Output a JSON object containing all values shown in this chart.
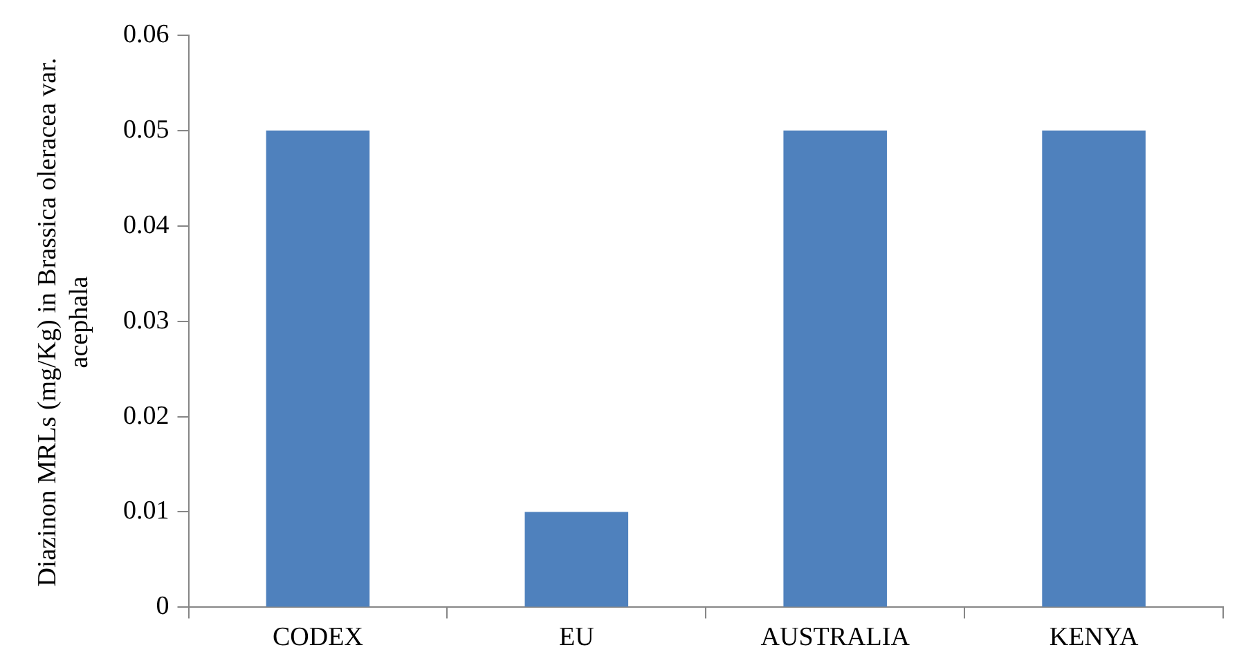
{
  "chart_data": {
    "type": "bar",
    "ylabel": "Diazinon MRLs (mg/Kg) in Brassica oleracea var. acephala",
    "categories": [
      "CODEX",
      "EU",
      "AUSTRALIA",
      "KENYA"
    ],
    "values": [
      0.05,
      0.01,
      0.05,
      0.05
    ],
    "color": "#4f81bd",
    "ylim": [
      0,
      0.06
    ],
    "yticks": [
      0,
      0.01,
      0.02,
      0.03,
      0.04,
      0.05,
      0.06
    ],
    "grid": false,
    "legend": false
  }
}
